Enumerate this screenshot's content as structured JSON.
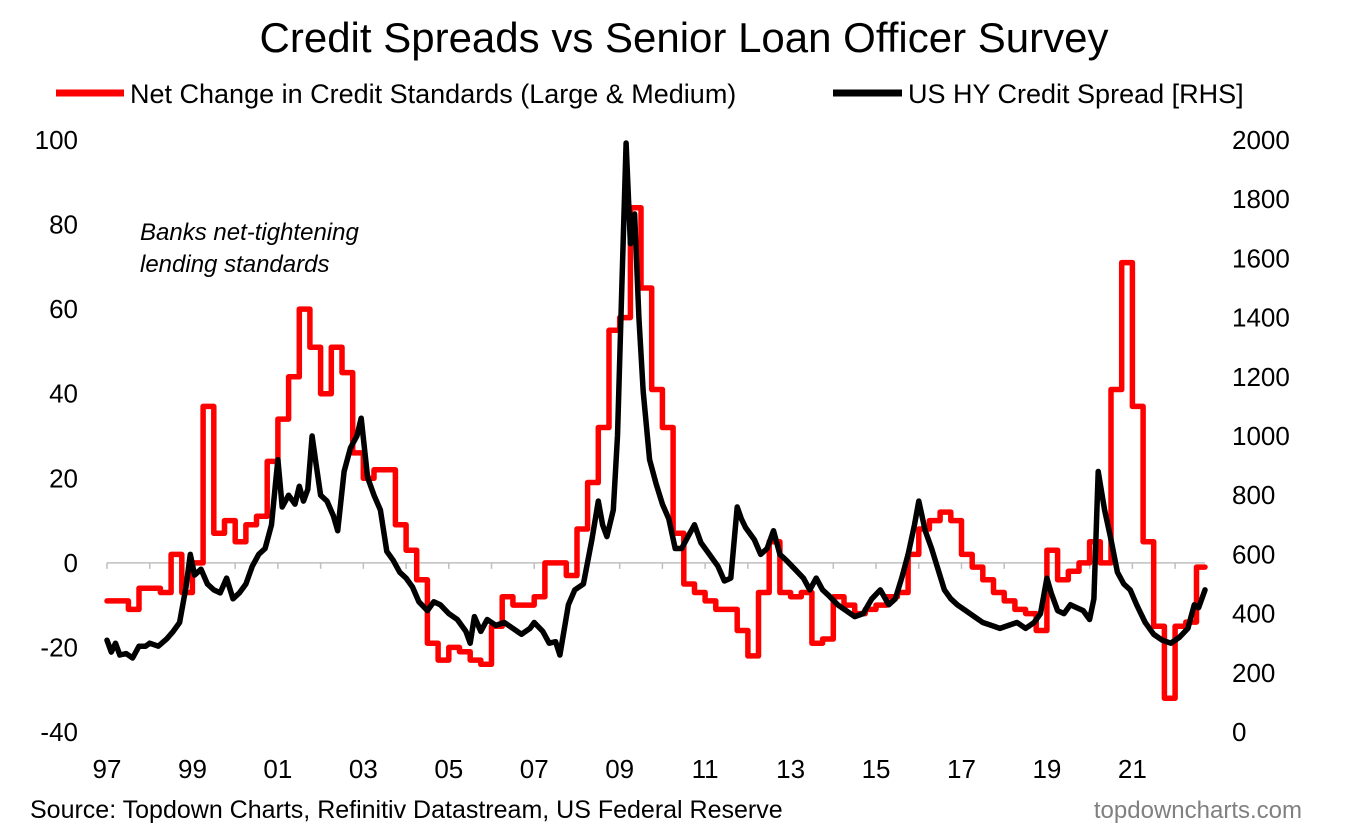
{
  "chart_data": {
    "type": "line",
    "title": "Credit Spreads vs Senior Loan Officer Survey",
    "legend_position": "top",
    "grid": false,
    "colors": {
      "standards": "#ff0000",
      "spread": "#000000"
    },
    "x_ticks": [
      "97",
      "99",
      "01",
      "03",
      "05",
      "07",
      "09",
      "11",
      "13",
      "15",
      "17",
      "19",
      "21"
    ],
    "y_left": {
      "ticks": [
        "100",
        "80",
        "60",
        "40",
        "20",
        "0",
        "-20",
        "-40"
      ],
      "range": [
        -40,
        100
      ]
    },
    "y_right": {
      "ticks": [
        "2000",
        "1800",
        "1600",
        "1400",
        "1200",
        "1000",
        "800",
        "600",
        "400",
        "200",
        "0"
      ],
      "range": [
        0,
        2000
      ]
    },
    "annotation": [
      "Banks net-tightening",
      "lending standards"
    ],
    "series": [
      {
        "name": "Net Change in Credit Standards (Large & Medium)",
        "axis": "left",
        "points": [
          [
            1997.0,
            -9
          ],
          [
            1997.25,
            -9
          ],
          [
            1997.5,
            -11
          ],
          [
            1997.75,
            -6
          ],
          [
            1998.0,
            -6
          ],
          [
            1998.25,
            -7
          ],
          [
            1998.5,
            2
          ],
          [
            1998.75,
            -7
          ],
          [
            1999.0,
            0
          ],
          [
            1999.25,
            37
          ],
          [
            1999.5,
            7
          ],
          [
            1999.75,
            10
          ],
          [
            2000.0,
            5
          ],
          [
            2000.25,
            9
          ],
          [
            2000.5,
            11
          ],
          [
            2000.75,
            24
          ],
          [
            2001.0,
            34
          ],
          [
            2001.25,
            44
          ],
          [
            2001.5,
            60
          ],
          [
            2001.75,
            51
          ],
          [
            2002.0,
            40
          ],
          [
            2002.25,
            51
          ],
          [
            2002.5,
            45
          ],
          [
            2002.75,
            26
          ],
          [
            2003.0,
            20
          ],
          [
            2003.25,
            22
          ],
          [
            2003.5,
            22
          ],
          [
            2003.75,
            9
          ],
          [
            2004.0,
            3
          ],
          [
            2004.25,
            -4
          ],
          [
            2004.5,
            -19
          ],
          [
            2004.75,
            -23
          ],
          [
            2005.0,
            -20
          ],
          [
            2005.25,
            -21
          ],
          [
            2005.5,
            -23
          ],
          [
            2005.75,
            -24
          ],
          [
            2006.0,
            -15
          ],
          [
            2006.25,
            -8
          ],
          [
            2006.5,
            -10
          ],
          [
            2006.75,
            -10
          ],
          [
            2007.0,
            -8
          ],
          [
            2007.25,
            0
          ],
          [
            2007.5,
            0
          ],
          [
            2007.75,
            -3
          ],
          [
            2008.0,
            8
          ],
          [
            2008.25,
            19
          ],
          [
            2008.5,
            32
          ],
          [
            2008.75,
            55
          ],
          [
            2009.0,
            58
          ],
          [
            2009.25,
            84
          ],
          [
            2009.5,
            65
          ],
          [
            2009.75,
            41
          ],
          [
            2010.0,
            32
          ],
          [
            2010.25,
            7
          ],
          [
            2010.5,
            -5
          ],
          [
            2010.75,
            -7
          ],
          [
            2011.0,
            -9
          ],
          [
            2011.25,
            -11
          ],
          [
            2011.5,
            -11
          ],
          [
            2011.75,
            -16
          ],
          [
            2012.0,
            -22
          ],
          [
            2012.25,
            -7
          ],
          [
            2012.5,
            5
          ],
          [
            2012.75,
            -7
          ],
          [
            2013.0,
            -8
          ],
          [
            2013.25,
            -7
          ],
          [
            2013.5,
            -19
          ],
          [
            2013.75,
            -18
          ],
          [
            2014.0,
            -8
          ],
          [
            2014.25,
            -10
          ],
          [
            2014.5,
            -12
          ],
          [
            2014.75,
            -11
          ],
          [
            2015.0,
            -10
          ],
          [
            2015.25,
            -8
          ],
          [
            2015.5,
            -7
          ],
          [
            2015.75,
            2
          ],
          [
            2016.0,
            8
          ],
          [
            2016.25,
            10
          ],
          [
            2016.5,
            12
          ],
          [
            2016.75,
            10
          ],
          [
            2017.0,
            2
          ],
          [
            2017.25,
            -1
          ],
          [
            2017.5,
            -4
          ],
          [
            2017.75,
            -7
          ],
          [
            2018.0,
            -9
          ],
          [
            2018.25,
            -11
          ],
          [
            2018.5,
            -12
          ],
          [
            2018.75,
            -16
          ],
          [
            2019.0,
            3
          ],
          [
            2019.25,
            -4
          ],
          [
            2019.5,
            -2
          ],
          [
            2019.75,
            0
          ],
          [
            2020.0,
            5
          ],
          [
            2020.25,
            0
          ],
          [
            2020.5,
            41
          ],
          [
            2020.75,
            71
          ],
          [
            2021.0,
            37
          ],
          [
            2021.25,
            5
          ],
          [
            2021.5,
            -15
          ],
          [
            2021.75,
            -32
          ],
          [
            2022.0,
            -15
          ],
          [
            2022.25,
            -14
          ],
          [
            2022.5,
            -1
          ],
          [
            2022.7,
            -1
          ]
        ]
      },
      {
        "name": "US HY Credit Spread [RHS]",
        "axis": "right",
        "points": [
          [
            1997.0,
            310
          ],
          [
            1997.1,
            270
          ],
          [
            1997.2,
            300
          ],
          [
            1997.3,
            260
          ],
          [
            1997.45,
            265
          ],
          [
            1997.6,
            250
          ],
          [
            1997.75,
            290
          ],
          [
            1997.9,
            290
          ],
          [
            1998.0,
            300
          ],
          [
            1998.2,
            290
          ],
          [
            1998.4,
            315
          ],
          [
            1998.55,
            340
          ],
          [
            1998.7,
            370
          ],
          [
            1998.85,
            490
          ],
          [
            1998.95,
            600
          ],
          [
            1999.05,
            530
          ],
          [
            1999.2,
            550
          ],
          [
            1999.35,
            500
          ],
          [
            1999.5,
            480
          ],
          [
            1999.65,
            470
          ],
          [
            1999.8,
            520
          ],
          [
            1999.95,
            450
          ],
          [
            2000.1,
            470
          ],
          [
            2000.25,
            500
          ],
          [
            2000.4,
            560
          ],
          [
            2000.55,
            600
          ],
          [
            2000.7,
            620
          ],
          [
            2000.85,
            700
          ],
          [
            2000.95,
            850
          ],
          [
            2001.0,
            920
          ],
          [
            2001.1,
            760
          ],
          [
            2001.25,
            800
          ],
          [
            2001.4,
            770
          ],
          [
            2001.5,
            830
          ],
          [
            2001.6,
            780
          ],
          [
            2001.7,
            820
          ],
          [
            2001.8,
            1000
          ],
          [
            2001.9,
            900
          ],
          [
            2002.0,
            800
          ],
          [
            2002.15,
            780
          ],
          [
            2002.3,
            730
          ],
          [
            2002.4,
            680
          ],
          [
            2002.55,
            880
          ],
          [
            2002.7,
            960
          ],
          [
            2002.85,
            1000
          ],
          [
            2002.95,
            1060
          ],
          [
            2003.1,
            860
          ],
          [
            2003.25,
            800
          ],
          [
            2003.4,
            750
          ],
          [
            2003.55,
            610
          ],
          [
            2003.7,
            580
          ],
          [
            2003.85,
            540
          ],
          [
            2004.0,
            520
          ],
          [
            2004.15,
            490
          ],
          [
            2004.3,
            440
          ],
          [
            2004.5,
            410
          ],
          [
            2004.65,
            440
          ],
          [
            2004.8,
            430
          ],
          [
            2005.0,
            400
          ],
          [
            2005.2,
            380
          ],
          [
            2005.4,
            340
          ],
          [
            2005.5,
            300
          ],
          [
            2005.6,
            390
          ],
          [
            2005.75,
            340
          ],
          [
            2005.9,
            380
          ],
          [
            2006.1,
            360
          ],
          [
            2006.3,
            370
          ],
          [
            2006.5,
            350
          ],
          [
            2006.7,
            330
          ],
          [
            2006.9,
            350
          ],
          [
            2007.0,
            370
          ],
          [
            2007.2,
            340
          ],
          [
            2007.35,
            300
          ],
          [
            2007.5,
            305
          ],
          [
            2007.6,
            260
          ],
          [
            2007.8,
            430
          ],
          [
            2007.95,
            480
          ],
          [
            2008.15,
            500
          ],
          [
            2008.35,
            650
          ],
          [
            2008.5,
            780
          ],
          [
            2008.6,
            700
          ],
          [
            2008.7,
            660
          ],
          [
            2008.85,
            750
          ],
          [
            2008.95,
            1000
          ],
          [
            2009.05,
            1500
          ],
          [
            2009.15,
            1990
          ],
          [
            2009.25,
            1650
          ],
          [
            2009.35,
            1750
          ],
          [
            2009.45,
            1400
          ],
          [
            2009.55,
            1150
          ],
          [
            2009.7,
            920
          ],
          [
            2009.85,
            840
          ],
          [
            2010.0,
            770
          ],
          [
            2010.15,
            720
          ],
          [
            2010.3,
            620
          ],
          [
            2010.45,
            620
          ],
          [
            2010.6,
            660
          ],
          [
            2010.75,
            700
          ],
          [
            2010.9,
            640
          ],
          [
            2011.1,
            600
          ],
          [
            2011.3,
            560
          ],
          [
            2011.45,
            510
          ],
          [
            2011.6,
            520
          ],
          [
            2011.75,
            760
          ],
          [
            2011.85,
            720
          ],
          [
            2011.95,
            690
          ],
          [
            2012.15,
            650
          ],
          [
            2012.3,
            600
          ],
          [
            2012.45,
            620
          ],
          [
            2012.6,
            680
          ],
          [
            2012.75,
            600
          ],
          [
            2012.9,
            580
          ],
          [
            2013.1,
            550
          ],
          [
            2013.3,
            520
          ],
          [
            2013.45,
            480
          ],
          [
            2013.6,
            520
          ],
          [
            2013.75,
            480
          ],
          [
            2013.9,
            460
          ],
          [
            2014.1,
            430
          ],
          [
            2014.3,
            410
          ],
          [
            2014.5,
            390
          ],
          [
            2014.7,
            400
          ],
          [
            2014.9,
            450
          ],
          [
            2015.1,
            480
          ],
          [
            2015.3,
            430
          ],
          [
            2015.45,
            450
          ],
          [
            2015.6,
            520
          ],
          [
            2015.75,
            600
          ],
          [
            2015.9,
            700
          ],
          [
            2016.0,
            780
          ],
          [
            2016.15,
            680
          ],
          [
            2016.3,
            620
          ],
          [
            2016.45,
            550
          ],
          [
            2016.6,
            480
          ],
          [
            2016.75,
            450
          ],
          [
            2016.9,
            430
          ],
          [
            2017.1,
            410
          ],
          [
            2017.3,
            390
          ],
          [
            2017.5,
            370
          ],
          [
            2017.7,
            360
          ],
          [
            2017.9,
            350
          ],
          [
            2018.1,
            360
          ],
          [
            2018.3,
            370
          ],
          [
            2018.5,
            350
          ],
          [
            2018.7,
            370
          ],
          [
            2018.85,
            400
          ],
          [
            2019.0,
            520
          ],
          [
            2019.1,
            470
          ],
          [
            2019.25,
            410
          ],
          [
            2019.4,
            400
          ],
          [
            2019.55,
            430
          ],
          [
            2019.7,
            420
          ],
          [
            2019.85,
            410
          ],
          [
            2020.0,
            380
          ],
          [
            2020.1,
            450
          ],
          [
            2020.2,
            880
          ],
          [
            2020.35,
            750
          ],
          [
            2020.5,
            650
          ],
          [
            2020.65,
            540
          ],
          [
            2020.8,
            500
          ],
          [
            2020.95,
            480
          ],
          [
            2021.1,
            430
          ],
          [
            2021.3,
            370
          ],
          [
            2021.5,
            330
          ],
          [
            2021.7,
            310
          ],
          [
            2021.9,
            300
          ],
          [
            2022.1,
            320
          ],
          [
            2022.3,
            350
          ],
          [
            2022.45,
            430
          ],
          [
            2022.55,
            420
          ],
          [
            2022.65,
            460
          ],
          [
            2022.7,
            480
          ]
        ]
      }
    ]
  },
  "source": "Source: Topdown Charts, Refinitiv Datastream, US Federal Reserve",
  "credit": "topdowncharts.com"
}
